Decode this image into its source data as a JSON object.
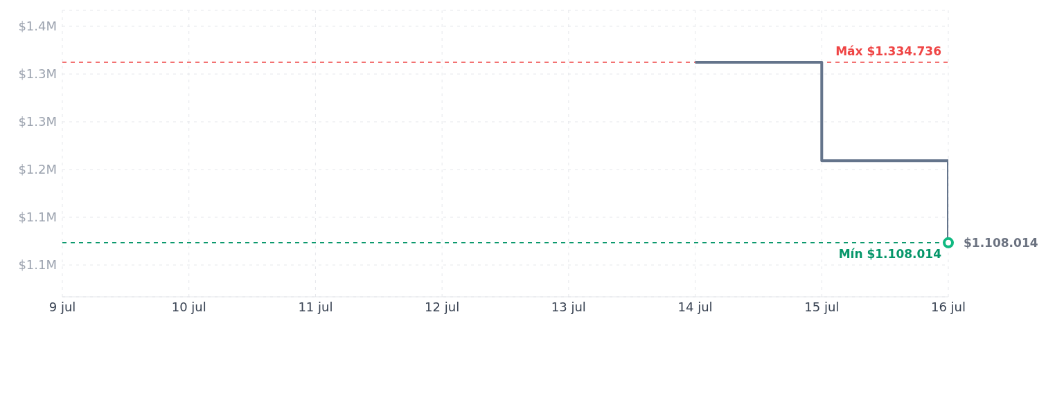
{
  "chart_data": {
    "type": "step",
    "x": [
      "--07-14",
      "--07-15",
      "--07-16"
    ],
    "series": [
      {
        "color": "#64748b",
        "values": [
          1334736,
          1211000,
          1108014
        ]
      }
    ],
    "xlim": [
      "--07-09",
      "--07-16"
    ],
    "xticks": [
      {
        "value": "--07-09",
        "label": "9 jul"
      },
      {
        "value": "--07-10",
        "label": "10 jul"
      },
      {
        "value": "--07-11",
        "label": "11 jul"
      },
      {
        "value": "--07-12",
        "label": "12 jul"
      },
      {
        "value": "--07-13",
        "label": "13 jul"
      },
      {
        "value": "--07-14",
        "label": "14 jul"
      },
      {
        "value": "--07-15",
        "label": "15 jul"
      },
      {
        "value": "--07-16",
        "label": "16 jul"
      }
    ],
    "ylim": [
      1040000,
      1400000
    ],
    "yticks": [
      {
        "value": 1080000,
        "label": "$1.1M"
      },
      {
        "value": 1140000,
        "label": "$1.1M"
      },
      {
        "value": 1200000,
        "label": "$1.2M"
      },
      {
        "value": 1260000,
        "label": "$1.3M"
      },
      {
        "value": 1320000,
        "label": "$1.3M"
      },
      {
        "value": 1380000,
        "label": "$1.4M"
      }
    ],
    "grid": true,
    "marker": "none",
    "line_style": "solid",
    "ref_lines": [
      {
        "axis": "y",
        "value": 1334736,
        "label": "Máx $1.334.736",
        "color": "#ef4444",
        "line_style": "dashed"
      },
      {
        "axis": "y",
        "value": 1108014,
        "label": "Mín $1.108.014",
        "color": "#059669",
        "line_style": "dashed"
      }
    ],
    "annotations": [
      {
        "text": "$1.108.014",
        "x": "--07-16",
        "y": 1108014
      }
    ]
  }
}
